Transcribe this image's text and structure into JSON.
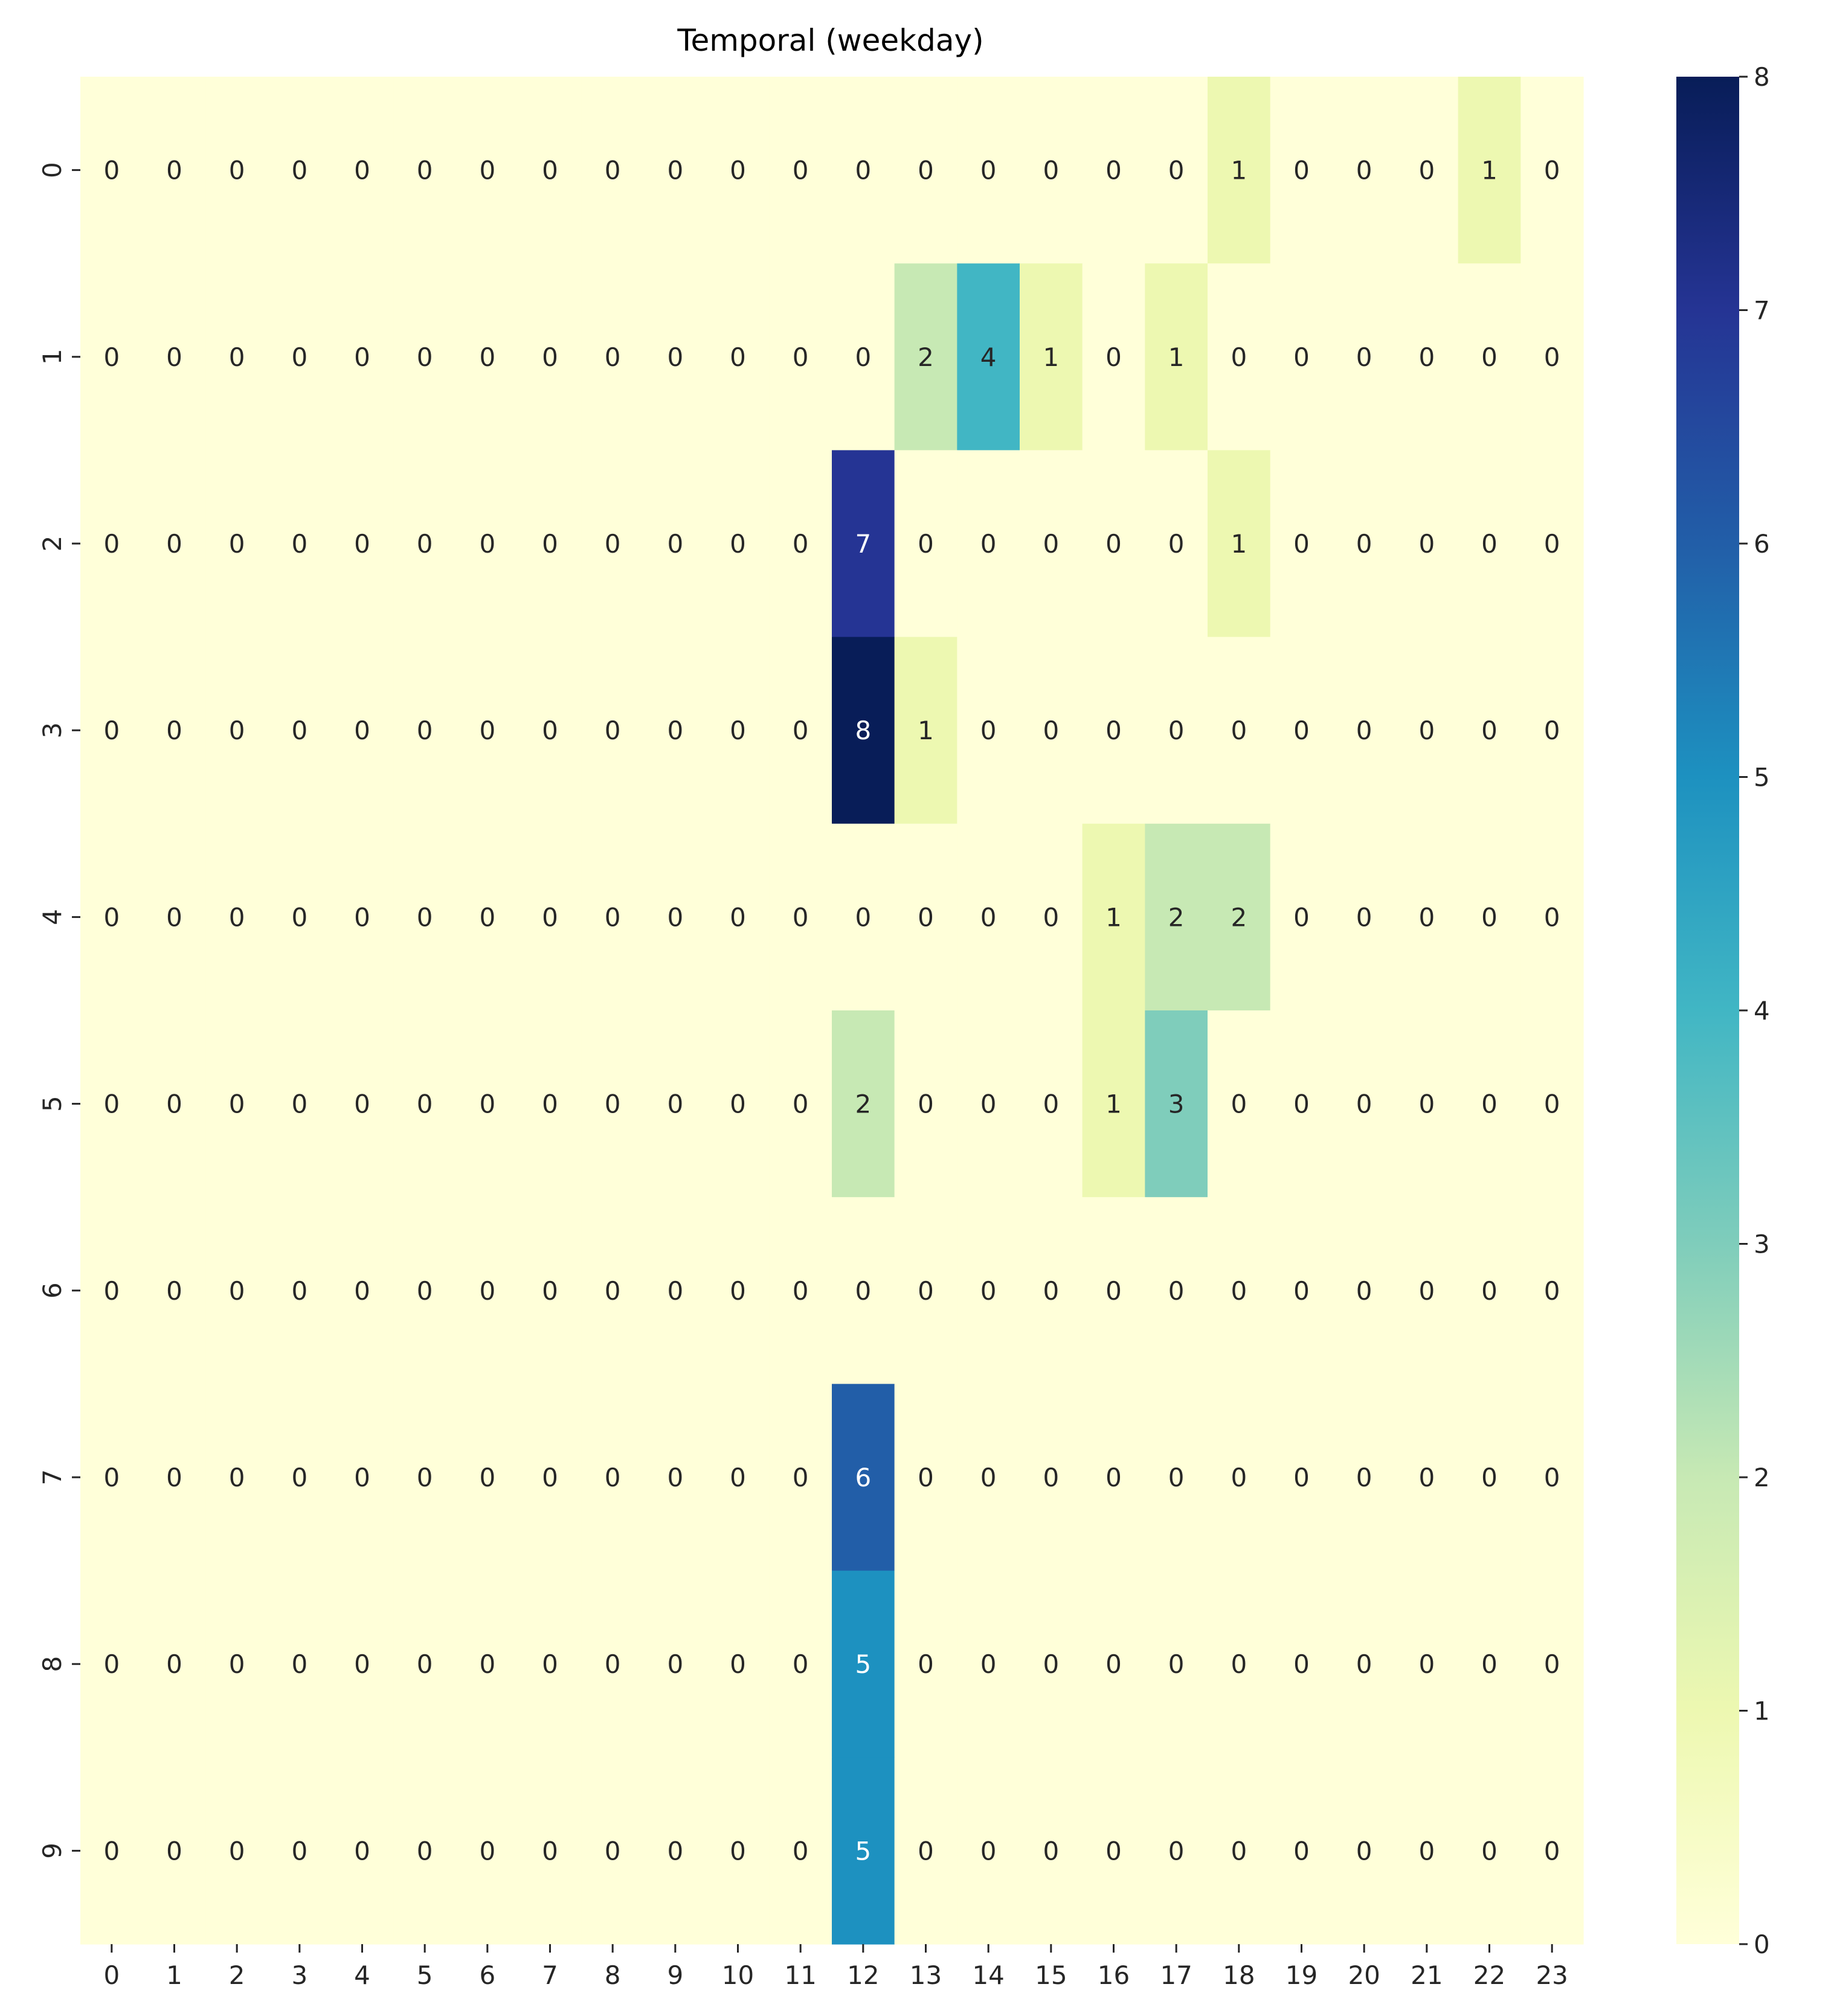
{
  "chart_data": {
    "type": "heatmap",
    "title": "Temporal (weekday)",
    "xlabel": "",
    "ylabel": "",
    "x_labels": [
      "0",
      "1",
      "2",
      "3",
      "4",
      "5",
      "6",
      "7",
      "8",
      "9",
      "10",
      "11",
      "12",
      "13",
      "14",
      "15",
      "16",
      "17",
      "18",
      "19",
      "20",
      "21",
      "22",
      "23"
    ],
    "y_labels": [
      "0",
      "1",
      "2",
      "3",
      "4",
      "5",
      "6",
      "7",
      "8",
      "9"
    ],
    "values": [
      [
        0,
        0,
        0,
        0,
        0,
        0,
        0,
        0,
        0,
        0,
        0,
        0,
        0,
        0,
        0,
        0,
        0,
        0,
        1,
        0,
        0,
        0,
        1,
        0
      ],
      [
        0,
        0,
        0,
        0,
        0,
        0,
        0,
        0,
        0,
        0,
        0,
        0,
        0,
        2,
        4,
        1,
        0,
        1,
        0,
        0,
        0,
        0,
        0,
        0
      ],
      [
        0,
        0,
        0,
        0,
        0,
        0,
        0,
        0,
        0,
        0,
        0,
        0,
        7,
        0,
        0,
        0,
        0,
        0,
        1,
        0,
        0,
        0,
        0,
        0
      ],
      [
        0,
        0,
        0,
        0,
        0,
        0,
        0,
        0,
        0,
        0,
        0,
        0,
        8,
        1,
        0,
        0,
        0,
        0,
        0,
        0,
        0,
        0,
        0,
        0
      ],
      [
        0,
        0,
        0,
        0,
        0,
        0,
        0,
        0,
        0,
        0,
        0,
        0,
        0,
        0,
        0,
        0,
        1,
        2,
        2,
        0,
        0,
        0,
        0,
        0
      ],
      [
        0,
        0,
        0,
        0,
        0,
        0,
        0,
        0,
        0,
        0,
        0,
        0,
        2,
        0,
        0,
        0,
        1,
        3,
        0,
        0,
        0,
        0,
        0,
        0
      ],
      [
        0,
        0,
        0,
        0,
        0,
        0,
        0,
        0,
        0,
        0,
        0,
        0,
        0,
        0,
        0,
        0,
        0,
        0,
        0,
        0,
        0,
        0,
        0,
        0
      ],
      [
        0,
        0,
        0,
        0,
        0,
        0,
        0,
        0,
        0,
        0,
        0,
        0,
        6,
        0,
        0,
        0,
        0,
        0,
        0,
        0,
        0,
        0,
        0,
        0
      ],
      [
        0,
        0,
        0,
        0,
        0,
        0,
        0,
        0,
        0,
        0,
        0,
        0,
        5,
        0,
        0,
        0,
        0,
        0,
        0,
        0,
        0,
        0,
        0,
        0
      ],
      [
        0,
        0,
        0,
        0,
        0,
        0,
        0,
        0,
        0,
        0,
        0,
        0,
        5,
        0,
        0,
        0,
        0,
        0,
        0,
        0,
        0,
        0,
        0,
        0
      ]
    ],
    "colormap": "YlGnBu",
    "vmin": 0,
    "vmax": 8,
    "annotated": true,
    "colorbar_ticks": [
      "0",
      "1",
      "2",
      "3",
      "4",
      "5",
      "6",
      "7",
      "8"
    ],
    "colorbar_position": "right"
  }
}
